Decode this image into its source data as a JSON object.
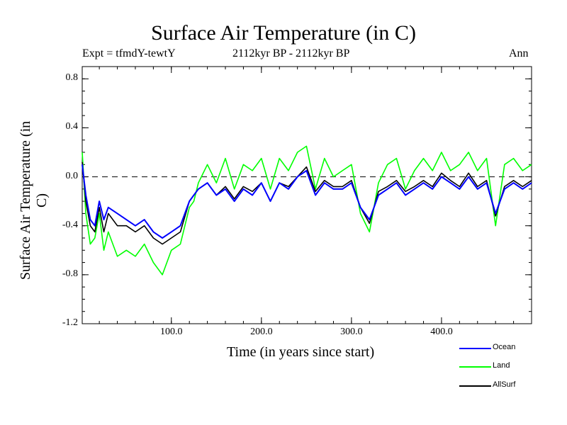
{
  "chart_data": {
    "type": "line",
    "title": "Surface Air Temperature (in C)",
    "subtitle_left": "Expt = tfmdY-tewtY",
    "subtitle_center": "2112kyr BP - 2112kyr BP",
    "subtitle_right": "Ann",
    "xlabel": "Time (in years since start)",
    "ylabel": "Surface Air Temperature (in C)",
    "xlim": [
      1,
      500
    ],
    "ylim": [
      -1.2,
      0.9
    ],
    "xticks": [
      100,
      200,
      300,
      400
    ],
    "xtick_labels": [
      "100.0",
      "200.0",
      "300.0",
      "400.0"
    ],
    "yticks": [
      0.8,
      0.4,
      0.0,
      -0.4,
      -0.8,
      -1.2
    ],
    "ytick_labels": [
      "0.8",
      "0.4",
      "0.0",
      "-0.4",
      "-0.8",
      "-1.2"
    ],
    "zero_line": 0.0,
    "series": [
      {
        "name": "Ocean",
        "color": "#0000ff",
        "x": [
          1,
          5,
          10,
          15,
          20,
          25,
          30,
          40,
          50,
          60,
          70,
          80,
          90,
          100,
          110,
          120,
          125,
          130,
          140,
          150,
          160,
          170,
          180,
          190,
          200,
          210,
          220,
          230,
          240,
          250,
          260,
          270,
          280,
          290,
          300,
          310,
          320,
          330,
          340,
          350,
          360,
          370,
          380,
          390,
          400,
          410,
          420,
          430,
          440,
          450,
          460,
          470,
          480,
          490,
          500
        ],
        "values": [
          0.1,
          -0.15,
          -0.35,
          -0.4,
          -0.2,
          -0.35,
          -0.25,
          -0.3,
          -0.35,
          -0.4,
          -0.35,
          -0.45,
          -0.5,
          -0.45,
          -0.4,
          -0.2,
          -0.15,
          -0.1,
          -0.05,
          -0.15,
          -0.1,
          -0.2,
          -0.1,
          -0.15,
          -0.05,
          -0.2,
          -0.05,
          -0.1,
          0.0,
          0.05,
          -0.15,
          -0.05,
          -0.1,
          -0.1,
          -0.05,
          -0.25,
          -0.35,
          -0.15,
          -0.1,
          -0.05,
          -0.15,
          -0.1,
          -0.05,
          -0.1,
          0.0,
          -0.05,
          -0.1,
          0.0,
          -0.1,
          -0.05,
          -0.3,
          -0.1,
          -0.05,
          -0.1,
          -0.05
        ]
      },
      {
        "name": "Land",
        "color": "#00ff00",
        "x": [
          1,
          5,
          10,
          15,
          20,
          25,
          30,
          40,
          50,
          60,
          70,
          80,
          90,
          100,
          110,
          120,
          125,
          130,
          140,
          150,
          160,
          170,
          180,
          190,
          200,
          210,
          220,
          230,
          240,
          250,
          260,
          270,
          280,
          290,
          300,
          310,
          320,
          330,
          340,
          350,
          360,
          370,
          380,
          390,
          400,
          410,
          420,
          430,
          440,
          450,
          460,
          470,
          480,
          490,
          500
        ],
        "values": [
          0.2,
          -0.3,
          -0.55,
          -0.5,
          -0.3,
          -0.6,
          -0.45,
          -0.65,
          -0.6,
          -0.65,
          -0.55,
          -0.7,
          -0.8,
          -0.6,
          -0.55,
          -0.25,
          -0.2,
          -0.05,
          0.1,
          -0.05,
          0.15,
          -0.1,
          0.1,
          0.05,
          0.15,
          -0.1,
          0.15,
          0.05,
          0.2,
          0.25,
          -0.1,
          0.15,
          0.0,
          0.05,
          0.1,
          -0.3,
          -0.45,
          -0.05,
          0.1,
          0.15,
          -0.1,
          0.05,
          0.15,
          0.05,
          0.2,
          0.05,
          0.1,
          0.2,
          0.05,
          0.15,
          -0.4,
          0.1,
          0.15,
          0.05,
          0.1
        ]
      },
      {
        "name": "AllSurf",
        "color": "#000000",
        "x": [
          1,
          5,
          10,
          15,
          20,
          25,
          30,
          40,
          50,
          60,
          70,
          80,
          90,
          100,
          110,
          120,
          125,
          130,
          140,
          150,
          160,
          170,
          180,
          190,
          200,
          210,
          220,
          230,
          240,
          250,
          260,
          270,
          280,
          290,
          300,
          310,
          320,
          330,
          340,
          350,
          360,
          370,
          380,
          390,
          400,
          410,
          420,
          430,
          440,
          450,
          460,
          470,
          480,
          490,
          500
        ],
        "values": [
          0.12,
          -0.2,
          -0.4,
          -0.45,
          -0.25,
          -0.45,
          -0.3,
          -0.4,
          -0.4,
          -0.45,
          -0.4,
          -0.5,
          -0.55,
          -0.5,
          -0.45,
          -0.2,
          -0.15,
          -0.1,
          -0.05,
          -0.15,
          -0.08,
          -0.18,
          -0.08,
          -0.12,
          -0.05,
          -0.2,
          -0.05,
          -0.08,
          0.0,
          0.08,
          -0.12,
          -0.03,
          -0.08,
          -0.08,
          -0.03,
          -0.25,
          -0.38,
          -0.12,
          -0.08,
          -0.03,
          -0.12,
          -0.08,
          -0.03,
          -0.08,
          0.03,
          -0.03,
          -0.08,
          0.03,
          -0.08,
          -0.03,
          -0.32,
          -0.08,
          -0.03,
          -0.08,
          -0.03
        ]
      }
    ],
    "legend": [
      "Ocean",
      "Land",
      "AllSurf"
    ]
  }
}
